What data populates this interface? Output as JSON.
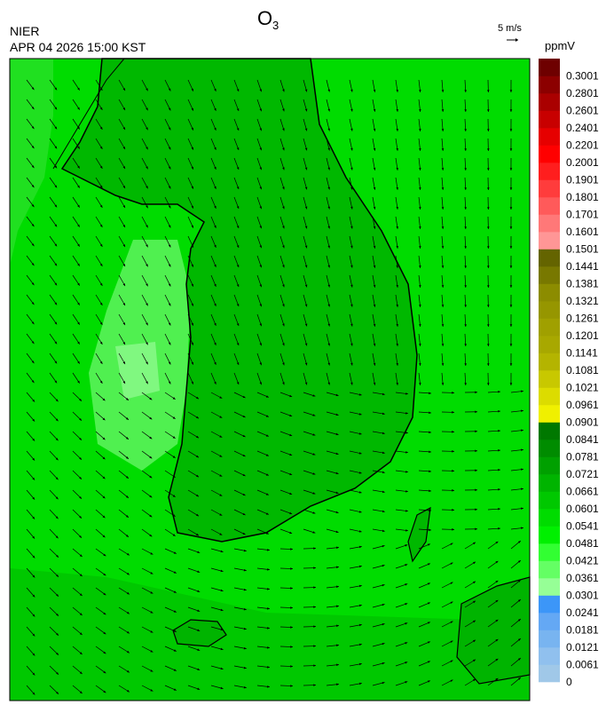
{
  "header": {
    "title": "O",
    "title_subscript": "3",
    "agency": "NIER",
    "datetime": "APR 04 2026 15:00 KST",
    "wind_scale_label": "5 m/s"
  },
  "colorbar": {
    "unit": "ppmV",
    "levels": [
      0,
      0.0061,
      0.0121,
      0.0181,
      0.0241,
      0.0301,
      0.0361,
      0.0421,
      0.0481,
      0.0541,
      0.0601,
      0.0661,
      0.0721,
      0.0781,
      0.0841,
      0.0901,
      0.0961,
      0.1021,
      0.1081,
      0.1141,
      0.1201,
      0.1261,
      0.1321,
      0.1381,
      0.1441,
      0.1501,
      0.1601,
      0.1701,
      0.1801,
      0.1901,
      0.2001,
      0.2201,
      0.2401,
      0.2601,
      0.2801,
      0.3001
    ],
    "colors": [
      "#a0c8e8",
      "#90c0ee",
      "#78b4f0",
      "#64a8f4",
      "#3c96f8",
      "#96ff96",
      "#64ff64",
      "#32ff32",
      "#00f000",
      "#00dc00",
      "#00c800",
      "#00b400",
      "#00a000",
      "#008c00",
      "#007800",
      "#f0f000",
      "#dcdc00",
      "#c8c800",
      "#b4b400",
      "#a8a800",
      "#a0a000",
      "#969600",
      "#8c8c00",
      "#787800",
      "#646400",
      "#ff9696",
      "#ff7878",
      "#ff5a5a",
      "#ff3c3c",
      "#ff1e1e",
      "#ff0000",
      "#e60000",
      "#c80000",
      "#aa0000",
      "#8c0000",
      "#6e0000"
    ]
  }
}
